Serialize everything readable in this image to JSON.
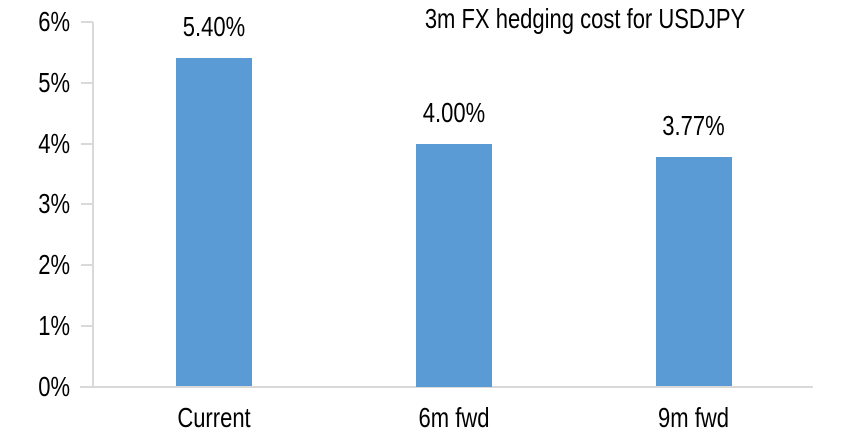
{
  "chart_data": {
    "type": "bar",
    "title": "3m FX hedging cost for USDJPY",
    "categories": [
      "Current",
      "6m fwd",
      "9m fwd"
    ],
    "values": [
      5.4,
      4.0,
      3.77
    ],
    "value_labels": [
      "5.40%",
      "4.00%",
      "3.77%"
    ],
    "ylim": [
      0,
      6
    ],
    "yticks": [
      0,
      1,
      2,
      3,
      4,
      5,
      6
    ],
    "ytick_labels": [
      "0%",
      "1%",
      "2%",
      "3%",
      "4%",
      "5%",
      "6%"
    ],
    "xlabel": "",
    "ylabel": "",
    "grid": false,
    "legend": "none",
    "colors": {
      "bar": "#5B9BD5",
      "axis": "#D9D9D9",
      "text": "#000000",
      "background": "#FFFFFF"
    }
  }
}
